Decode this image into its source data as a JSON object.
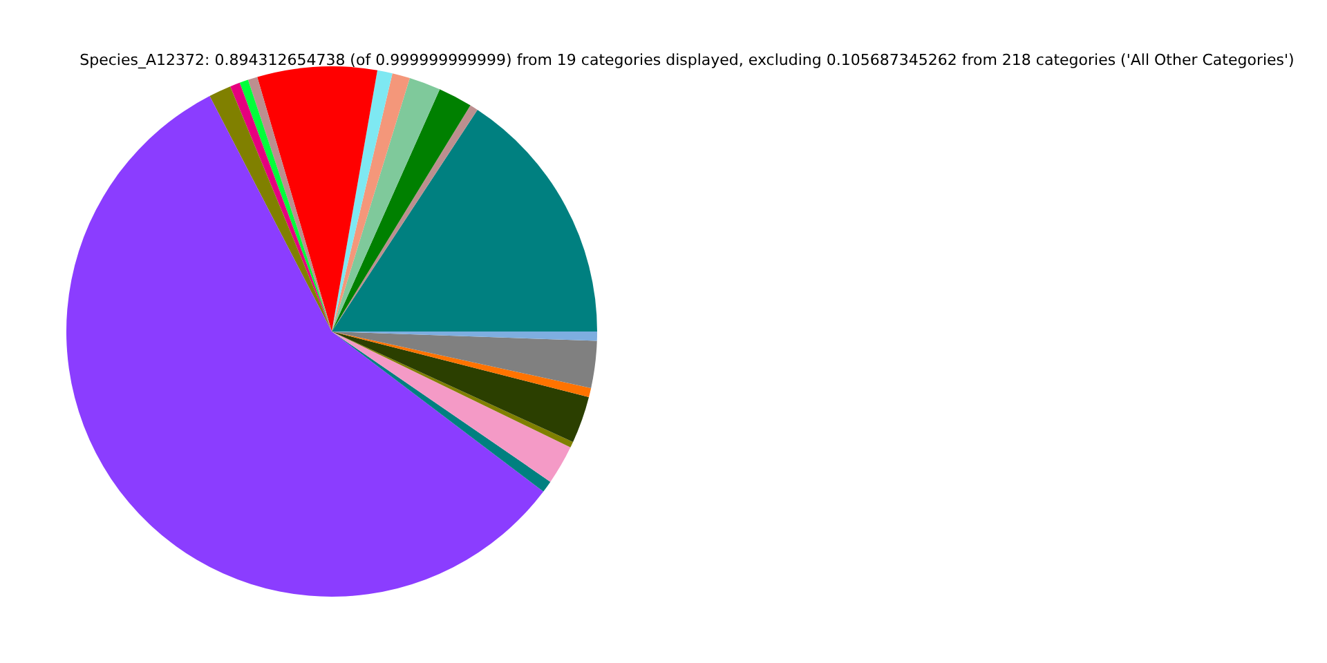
{
  "chart_data": {
    "type": "pie",
    "title": "Species_A12372: 0.894312654738 (of 0.999999999999) from 19 categories displayed, excluding 0.105687345262 from 218 categories ('All Other Categories')",
    "categories": [
      null,
      null,
      null,
      null,
      null,
      null,
      null,
      null,
      null,
      null,
      null,
      null,
      null,
      null,
      null,
      null,
      null,
      null,
      null
    ],
    "values": [
      15.75,
      0.5,
      2.08,
      1.92,
      1.08,
      0.92,
      7.28,
      0.58,
      0.53,
      0.61,
      1.36,
      57.08,
      0.72,
      2.39,
      0.36,
      2.86,
      0.56,
      2.86,
      0.56
    ],
    "colors": [
      "#008080",
      "#bc8f8f",
      "#008000",
      "#7fc99b",
      "#f4977a",
      "#7ee8f2",
      "#ff0000",
      "#bc8f8f",
      "#00ff3a",
      "#e6007e",
      "#808000",
      "#8b3dff",
      "#008080",
      "#f49ac6",
      "#808000",
      "#2b3f00",
      "#ff7300",
      "#808080",
      "#7eaee0"
    ]
  }
}
